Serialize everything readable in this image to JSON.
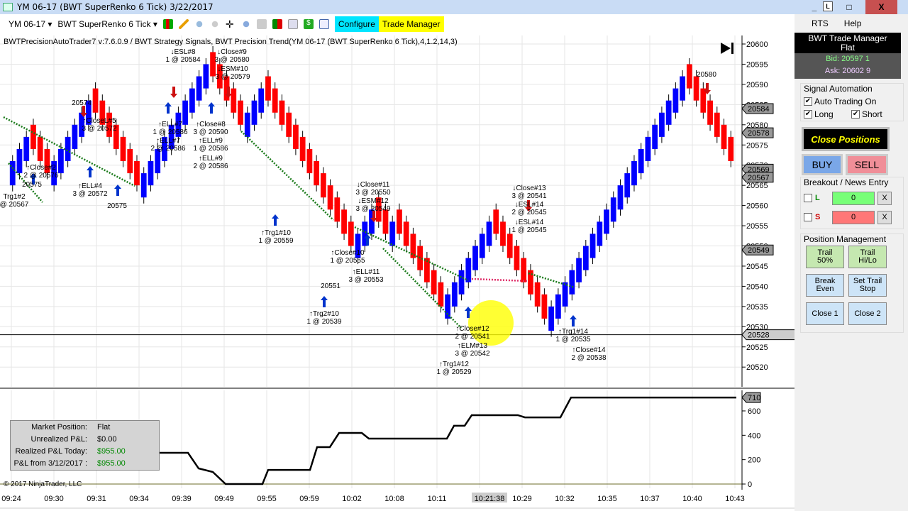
{
  "window": {
    "title": "YM 06-17 (BWT SuperRenko  6 Tick)  3/22/2017",
    "minimize": "_",
    "restore": "L",
    "maximize": "□",
    "close": "X"
  },
  "toolbar": {
    "instrument": "YM 06-17 ▾",
    "bartype": "BWT SuperRenko  6 Tick ▾",
    "configure": "Configure",
    "trade_manager": "Trade Manager"
  },
  "indicator_title": "BWTPrecisionAutoTrader7 v:7.6.0.9 / BWT Strategy Signals, BWT Precision Trend(YM 06-17 (BWT SuperRenko  6 Tick),4,1.2,14,3)",
  "panel": {
    "menu": [
      "RTS",
      "Help"
    ],
    "header": "BWT Trade Manager",
    "status": "Flat",
    "bid": "Bid: 20597 1",
    "ask": "Ask: 20602 9",
    "signal_automation": {
      "label": "Signal Automation",
      "auto": "Auto Trading On",
      "long": "Long",
      "short": "Short",
      "auto_checked": true,
      "long_checked": true,
      "short_checked": true
    },
    "close_positions": "Close Positions",
    "buy": "BUY",
    "sell": "SELL",
    "breakout": {
      "label": "Breakout / News Entry",
      "l": "L",
      "s": "S",
      "l_value": "0",
      "s_value": "0",
      "clear": "X"
    },
    "position_management": {
      "label": "Position Management",
      "trail50": "Trail 50%",
      "trailhilo": "Trail Hi/Lo",
      "breakeven": "Break Even",
      "settrail": "Set Trail Stop",
      "close1": "Close 1",
      "close2": "Close 2"
    }
  },
  "colors": {
    "up": "#0000ff",
    "down": "#ff0000",
    "trend": "#1a7a1a",
    "accent_configure": "#00e5ff",
    "accent_trade": "#ffff00"
  },
  "price_axis": {
    "ticks": [
      20600,
      20595,
      20590,
      20585,
      20580,
      20575,
      20570,
      20565,
      20560,
      20555,
      20550,
      20545,
      20540,
      20535,
      20530,
      20525,
      20520
    ],
    "markers": [
      20584,
      20578,
      20569,
      20567,
      20549,
      20528
    ]
  },
  "price_path": [
    20568,
    20578,
    20566,
    20587,
    20572,
    20563,
    20596,
    20578,
    20590,
    20548,
    20560,
    20551,
    20556,
    20533,
    20557,
    20548,
    20551,
    20530,
    20593,
    20569
  ],
  "pnl_axis": {
    "ticks": [
      0,
      200,
      400,
      600
    ],
    "last": "710"
  },
  "pnl_curve": [
    [
      0,
      256
    ],
    [
      1,
      256
    ],
    [
      2,
      128
    ],
    [
      3,
      99
    ],
    [
      4,
      0
    ],
    [
      5,
      0
    ],
    [
      6,
      116
    ],
    [
      7,
      116
    ],
    [
      8,
      303
    ],
    [
      9,
      303
    ],
    [
      10,
      419
    ],
    [
      11,
      419
    ],
    [
      12,
      373
    ],
    [
      13,
      373
    ],
    [
      14,
      478
    ],
    [
      15,
      478
    ],
    [
      16,
      565
    ],
    [
      17,
      565
    ],
    [
      18,
      547
    ],
    [
      19,
      547
    ],
    [
      20,
      710
    ],
    [
      21,
      710
    ]
  ],
  "time_axis": [
    "09:24",
    "09:30",
    "09:31",
    "09:34",
    "09:39",
    "09:49",
    "09:55",
    "09:59",
    "10:02",
    "10:08",
    "10:11",
    "10:21:38",
    "10:29",
    "10:32",
    "10:35",
    "10:37",
    "10:40",
    "10:43"
  ],
  "pnl_box": {
    "rows": [
      {
        "k": "Market Position:",
        "v": "Flat"
      },
      {
        "k": "Unrealized P&L:",
        "v": "$0.00"
      },
      {
        "k": "Realized P&L Today:",
        "v": "$955.00"
      },
      {
        "k": "P&L from 3/12/2017 :",
        "v": "$955.00"
      }
    ]
  },
  "copyright": "© 2017 NinjaTrader, LLC",
  "annotations": [
    {
      "a": "↓ESL#8",
      "b": "1 @ 20584"
    },
    {
      "a": "↓Close#9",
      "b": "3 @ 20580"
    },
    {
      "a": "↓ESM#10",
      "b": "3 @ 20579"
    },
    {
      "a": "20574",
      "b": ""
    },
    {
      "a": "↑CloseL#5",
      "b": "3 @ 20572"
    },
    {
      "a": "↑Close#2",
      "b": "2 @ 20576"
    },
    {
      "a": "20575",
      "b": ""
    },
    {
      "a": "Trg1#2",
      "b": "@ 20567"
    },
    {
      "a": "↑ELL#4",
      "b": "3 @ 20572"
    },
    {
      "a": "20575",
      "b": ""
    },
    {
      "a": "↑ELL#7",
      "b": "1 @ 20586"
    },
    {
      "a": "↑ELL#7",
      "b": "2 @ 20586"
    },
    {
      "a": "↑Close#8",
      "b": "3 @ 20590"
    },
    {
      "a": "↑ELL#9",
      "b": "1 @ 20586"
    },
    {
      "a": "↑ELL#9",
      "b": "2 @ 20586"
    },
    {
      "a": "↓Close#11",
      "b": "3 @ 20550"
    },
    {
      "a": "↓ESM#12",
      "b": "3 @ 20549"
    },
    {
      "a": "↑Trg1#10",
      "b": "1 @ 20559"
    },
    {
      "a": "↑Close#10",
      "b": "1 @ 20555"
    },
    {
      "a": "↑ELL#11",
      "b": "3 @ 20553"
    },
    {
      "a": "20551",
      "b": ""
    },
    {
      "a": "↑Trg2#10",
      "b": "1 @ 20539"
    },
    {
      "a": "↓Close#13",
      "b": "3 @ 20541"
    },
    {
      "a": "↓ESL#14",
      "b": "2 @ 20545"
    },
    {
      "a": "↓ESL#14",
      "b": "1 @ 20545"
    },
    {
      "a": "↑Close#12",
      "b": "2 @ 20541"
    },
    {
      "a": "↑ELM#13",
      "b": "3 @ 20542"
    },
    {
      "a": "↑Trg1#12",
      "b": "1 @ 20529"
    },
    {
      "a": "↑Trg1#14",
      "b": "1 @ 20535"
    },
    {
      "a": "↑Close#14",
      "b": "2 @ 20538"
    },
    {
      "a": "20580",
      "b": ""
    }
  ]
}
